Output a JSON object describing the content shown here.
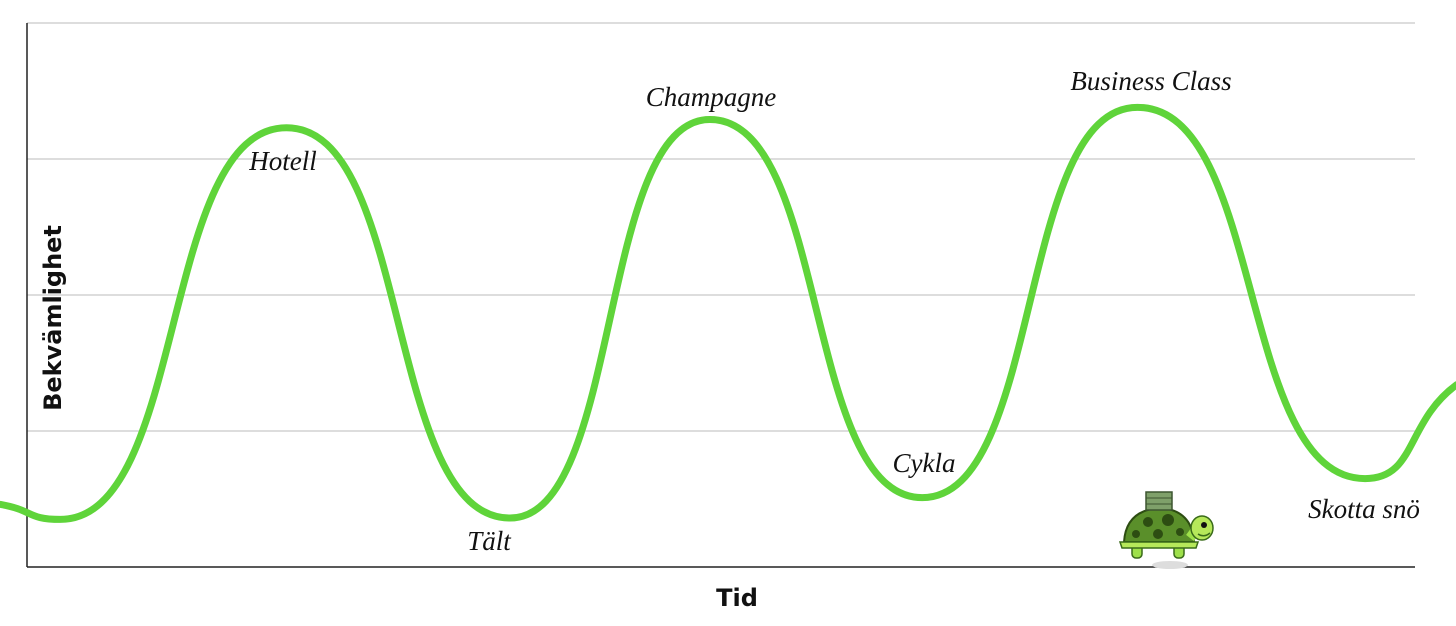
{
  "chart_data": {
    "type": "line",
    "x_label": "Tid",
    "y_label": "Bekvämlighet",
    "xlim": [
      0,
      10
    ],
    "ylim": [
      0,
      4
    ],
    "yticks": [
      0,
      1,
      2,
      3,
      4
    ],
    "grid": true,
    "x": [
      -0.19,
      0.24,
      1.87,
      3.48,
      4.92,
      6.45,
      8.0,
      9.64,
      10.3
    ],
    "series": [
      {
        "color": "#5fd43a",
        "values": [
          0.46,
          0.35,
          3.23,
          0.36,
          3.29,
          0.51,
          3.38,
          0.65,
          1.34
        ]
      }
    ],
    "annotations": [
      "Hotell",
      "Tält",
      "Champagne",
      "Cykla",
      "Business Class",
      "Skotta snö"
    ]
  }
}
